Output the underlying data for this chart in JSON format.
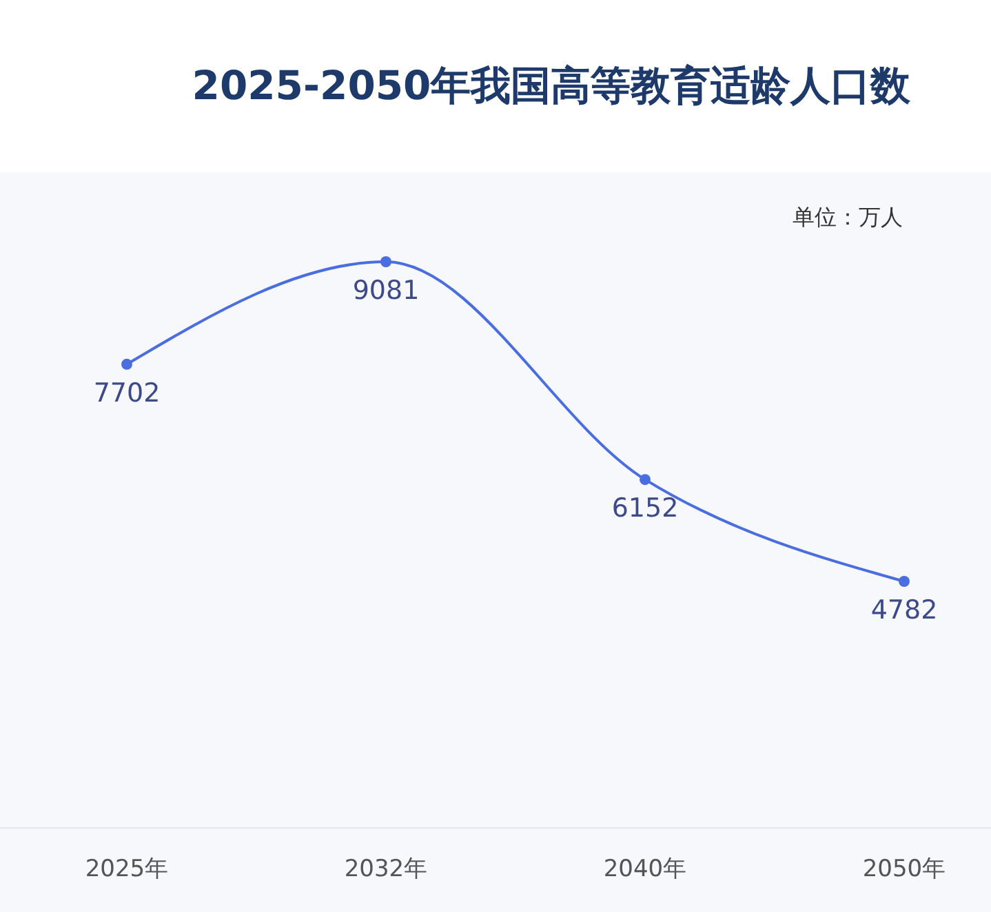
{
  "chart_data": {
    "type": "line",
    "title": "2025-2050年我国高等教育适龄人口数",
    "annotations": [
      "单位：万人"
    ],
    "categories": [
      "2025年",
      "2032年",
      "2040年",
      "2050年"
    ],
    "series": [
      {
        "color": "#4a6ee0",
        "values": [
          7702,
          9081,
          6152,
          4782
        ]
      }
    ],
    "data_labels": true,
    "marker": "circle"
  }
}
